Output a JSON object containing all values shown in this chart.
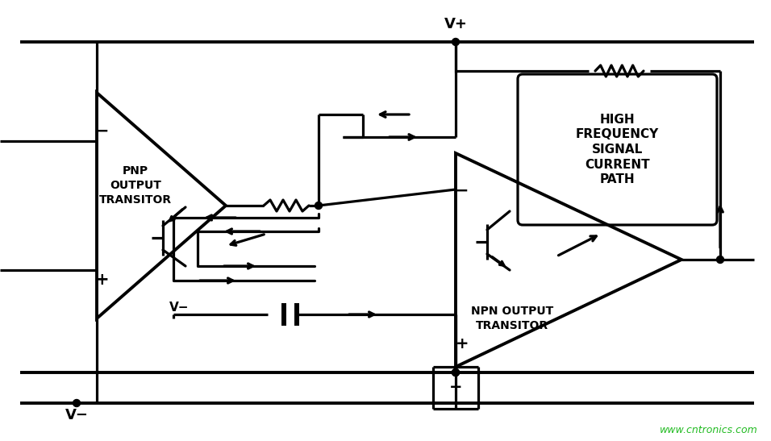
{
  "bg_color": "#ffffff",
  "line_color": "#000000",
  "lw": 2.3,
  "fig_width": 9.56,
  "fig_height": 5.47,
  "pnp_label": "PNP\nOUTPUT\nTRANSITOR",
  "npn_label": "NPN OUTPUT\nTRANSITOR",
  "hf_label": "HIGH\nFREQUENCY\nSIGNAL\nCURRENT\nPATH",
  "vplus": "V+",
  "vminus_bot": "V−",
  "vminus_pnp": "V−",
  "watermark": "www.cntronics.com",
  "watermark_color": "#22bb22",
  "minus_sym": "−",
  "plus_sym": "+"
}
